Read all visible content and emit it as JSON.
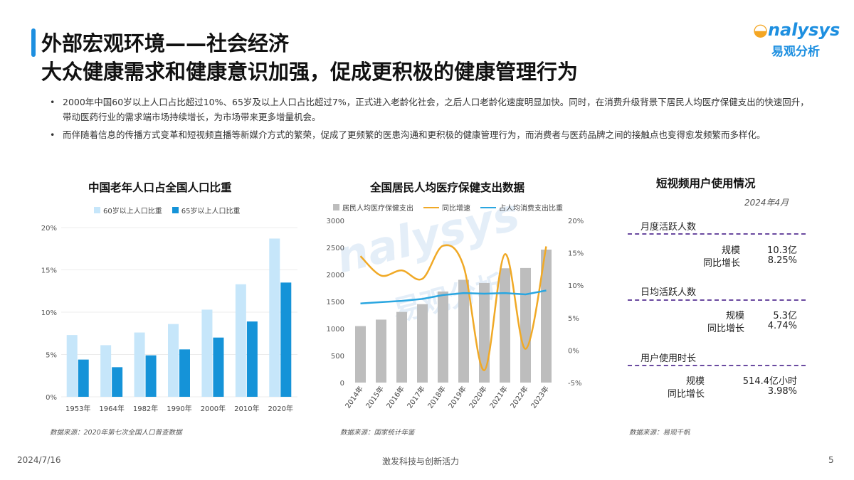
{
  "header": {
    "title_line1": "外部宏观环境——社会经济",
    "title_line2": "大众健康需求和健康意识加强，促成更积极的健康管理行为",
    "logo_text": "nalysys",
    "logo_text_cn": "易观分析",
    "accent_color": "#1d8fe0"
  },
  "bullets": [
    "2000年中国60岁以上人口占比超过10%、65岁及以上人口占比超过7%，正式进入老龄化社会，之后人口老龄化速度明显加快。同时，在消费升级背景下居民人均医疗保健支出的快速回升，带动医药行业的需求端市场持续增长，为市场带来更多增量机会。",
    "而伴随着信息的传播方式变革和短视频直播等新媒介方式的繁荣，促成了更频繁的医患沟通和更积极的健康管理行为，而消费者与医药品牌之间的接触点也变得愈发频繁而多样化。"
  ],
  "chart_data": [
    {
      "type": "bar",
      "title": "中国老年人口占全国人口比重",
      "categories": [
        "1953年",
        "1964年",
        "1982年",
        "1990年",
        "2000年",
        "2010年",
        "2020年"
      ],
      "series": [
        {
          "name": "60岁以上人口比重",
          "color": "#c6e6fa",
          "values": [
            7.3,
            6.1,
            7.6,
            8.6,
            10.3,
            13.3,
            18.7
          ]
        },
        {
          "name": "65岁以上人口比重",
          "color": "#1593d8",
          "values": [
            4.4,
            3.5,
            4.9,
            5.6,
            7.0,
            8.9,
            13.5
          ]
        }
      ],
      "yticks": [
        "0%",
        "5%",
        "10%",
        "15%",
        "20%"
      ],
      "ylim": [
        0,
        20
      ],
      "source": "数据来源：2020年第七次全国人口普查数据"
    },
    {
      "type": "bar+line",
      "title": "全国居民人均医疗保健支出数据",
      "categories": [
        "2014年",
        "2015年",
        "2016年",
        "2017年",
        "2018年",
        "2019年",
        "2020年",
        "2021年",
        "2022年",
        "2023年"
      ],
      "bar_series": {
        "name": "居民人均医疗保健支出",
        "color": "#bdbdbd",
        "values": [
          1045,
          1165,
          1307,
          1451,
          1685,
          1902,
          1843,
          2115,
          2120,
          2460
        ]
      },
      "line_series": [
        {
          "name": "同比增速",
          "color": "#f0a926",
          "values": [
            14.5,
            11.5,
            12.3,
            11.0,
            16.1,
            12.9,
            -3.1,
            14.8,
            0.2,
            16.0
          ]
        },
        {
          "name": "占人均消费支出比重",
          "color": "#2aa6e0",
          "values": [
            7.2,
            7.4,
            7.6,
            7.9,
            8.5,
            8.8,
            8.7,
            8.8,
            8.6,
            9.2
          ]
        }
      ],
      "yticks_left": [
        "0",
        "500",
        "1000",
        "1500",
        "2000",
        "2500",
        "3000"
      ],
      "ylim_left": [
        0,
        3000
      ],
      "yticks_right": [
        "-5%",
        "0%",
        "5%",
        "10%",
        "15%",
        "20%"
      ],
      "ylim_right": [
        -5,
        20
      ],
      "source": "数据来源：国家统计年鉴"
    }
  ],
  "panel": {
    "title": "短视频用户使用情况",
    "date": "2024年4月",
    "sections": [
      {
        "title": "月度活跃人数",
        "rows": [
          {
            "label": "规模",
            "value": "10.3亿"
          },
          {
            "label": "同比增长",
            "value": "8.25%"
          }
        ]
      },
      {
        "title": "日均活跃人数",
        "rows": [
          {
            "label": "规模",
            "value": "5.3亿"
          },
          {
            "label": "同比增长",
            "value": "4.74%"
          }
        ]
      },
      {
        "title": "用户使用时长",
        "rows": [
          {
            "label": "规模",
            "value": "514.4亿小时"
          },
          {
            "label": "同比增长",
            "value": "3.98%"
          }
        ]
      }
    ],
    "divider_color": "#6a4aa0",
    "source": "数据来源：易观千帆"
  },
  "footer": {
    "date": "2024/7/16",
    "slogan": "激发科技与创新活力",
    "page": "5"
  },
  "watermark": {
    "en": "nalysys",
    "cn": "易观分析"
  }
}
